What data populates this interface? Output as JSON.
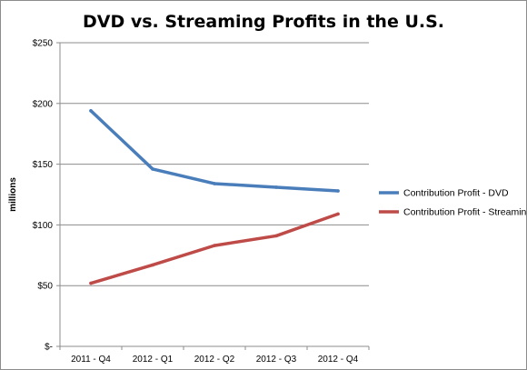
{
  "chart_data": {
    "type": "line",
    "title": "DVD vs. Streaming Profits in the U.S.",
    "xlabel": "",
    "ylabel": "millions",
    "categories": [
      "2011 - Q4",
      "2012 - Q1",
      "2012 - Q2",
      "2012 - Q3",
      "2012 - Q4"
    ],
    "ylim": [
      0,
      250
    ],
    "yticks": [
      0,
      50,
      100,
      150,
      200,
      250
    ],
    "ytick_labels": [
      "$-",
      "$50",
      "$100",
      "$150",
      "$200",
      "$250"
    ],
    "grid": true,
    "legend_position": "right",
    "series": [
      {
        "name": "Contribution Profit - DVD",
        "color": "#4a7ebb",
        "values": [
          194,
          146,
          134,
          131,
          128
        ]
      },
      {
        "name": "Contribution Profit - Streaming",
        "color": "#be4b48",
        "values": [
          52,
          67,
          83,
          91,
          109
        ]
      }
    ]
  }
}
